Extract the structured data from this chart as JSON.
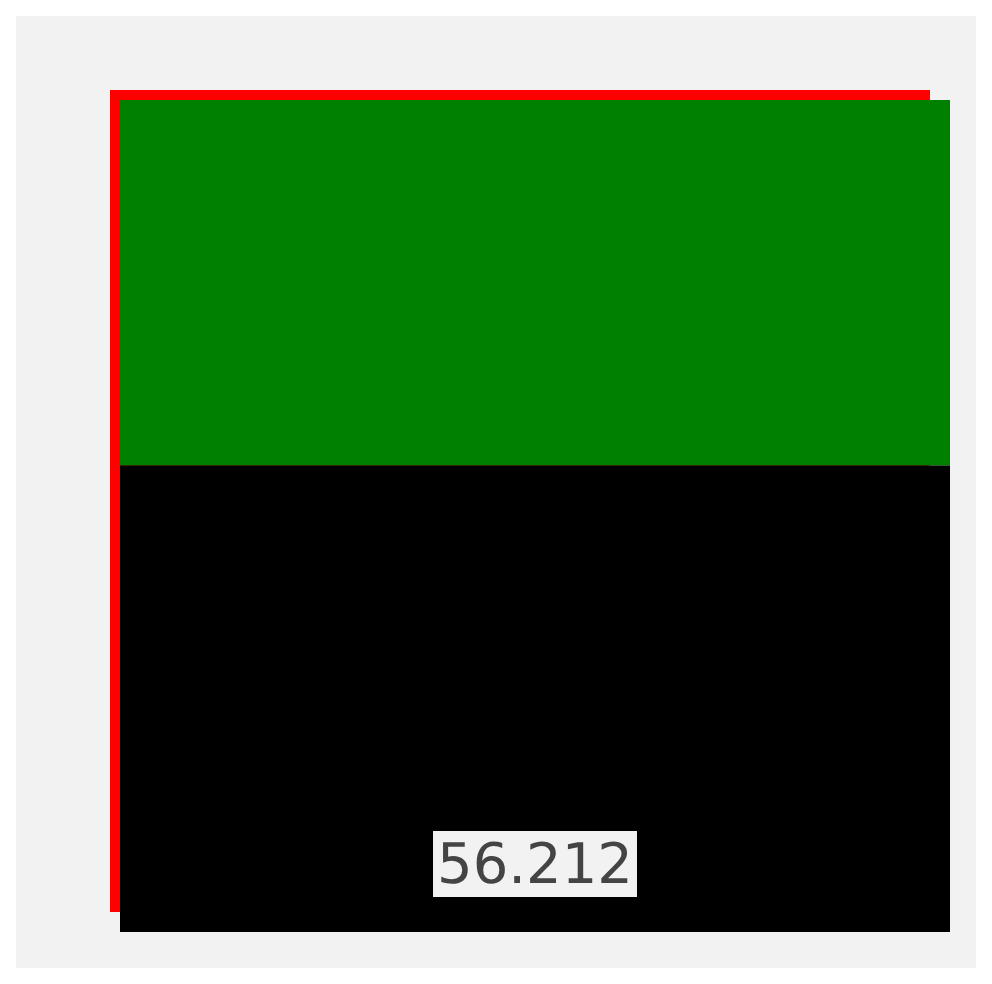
{
  "chart_data": {
    "type": "bar",
    "stacked": true,
    "categories": [
      null
    ],
    "series": [
      {
        "color": "#000000",
        "values": [
          56.212
        ],
        "value_labels": [
          "56.212"
        ]
      },
      {
        "color": "#008000",
        "values": [
          44
        ]
      }
    ]
  }
}
